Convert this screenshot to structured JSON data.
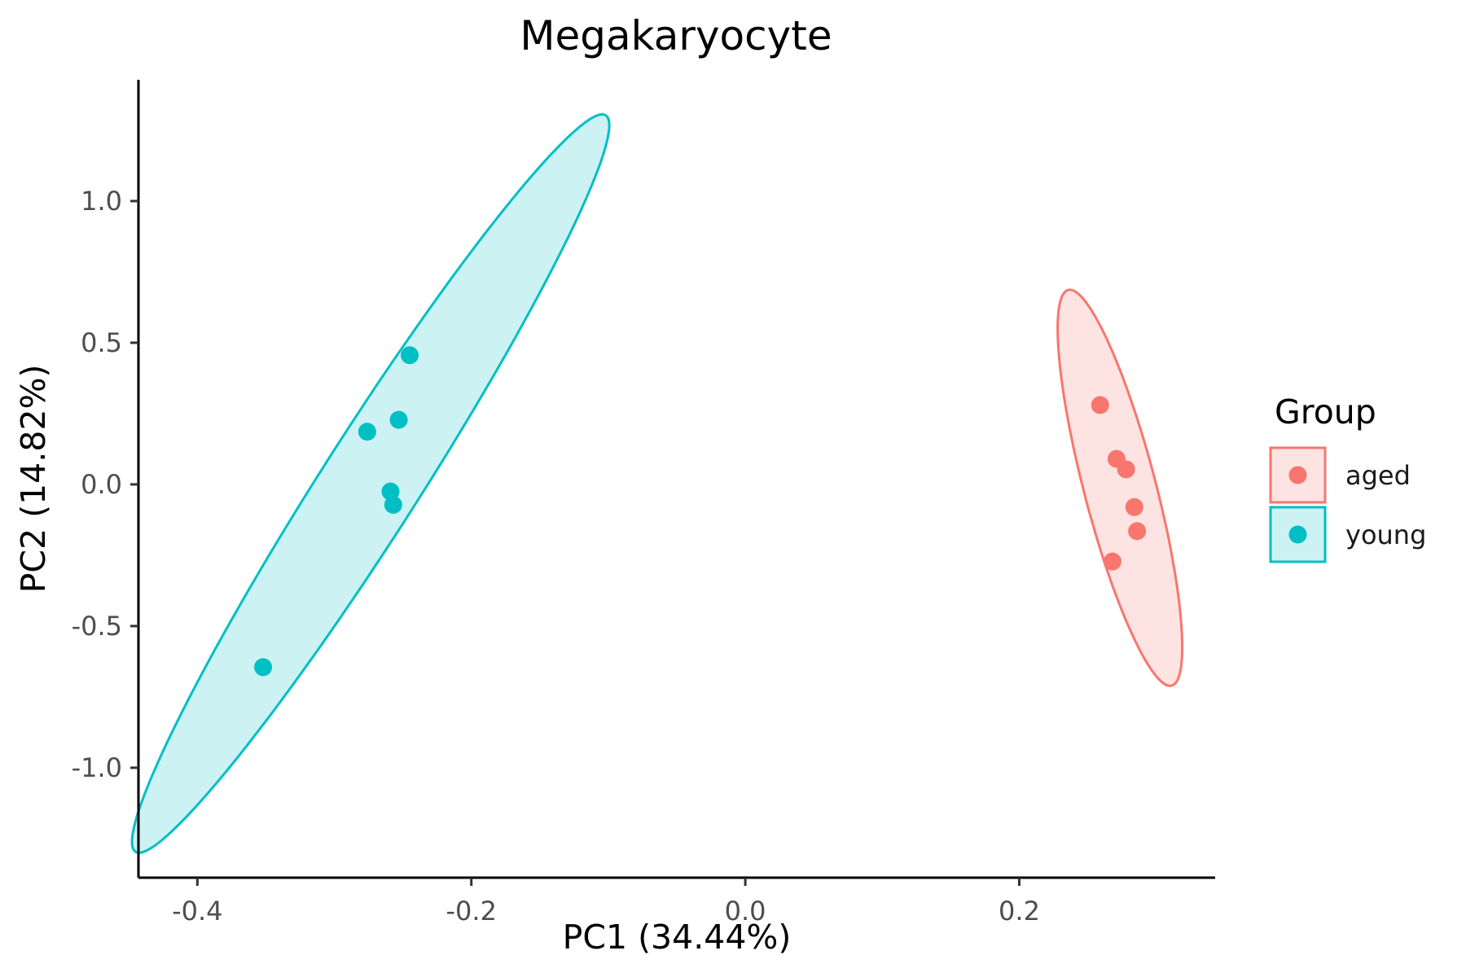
{
  "chart_data": {
    "type": "scatter",
    "title": "Megakaryocyte",
    "xlabel": "PC1 (34.44%)",
    "ylabel": "PC2 (14.82%)",
    "xlim": [
      -0.443,
      0.343
    ],
    "ylim": [
      -1.388,
      1.428
    ],
    "x_ticks": [
      -0.4,
      -0.2,
      0.0,
      0.2
    ],
    "x_tick_labels": [
      "-0.4",
      "-0.2",
      "0.0",
      "0.2"
    ],
    "y_ticks": [
      -1.0,
      -0.5,
      0.0,
      0.5,
      1.0
    ],
    "y_tick_labels": [
      "-1.0",
      "-0.5",
      "0.0",
      "0.5",
      "1.0"
    ],
    "grid": false,
    "legend": {
      "title": "Group",
      "position": "right"
    },
    "series": [
      {
        "name": "aged",
        "color": "#f8766d",
        "fill": "#fde4e2",
        "points": [
          {
            "x": 0.259,
            "y": 0.28
          },
          {
            "x": 0.271,
            "y": 0.09
          },
          {
            "x": 0.278,
            "y": 0.053
          },
          {
            "x": 0.284,
            "y": -0.08
          },
          {
            "x": 0.286,
            "y": -0.165
          },
          {
            "x": 0.268,
            "y": -0.272
          }
        ],
        "ellipse": {
          "cx": 0.2735,
          "cy": -0.012,
          "a": 0.7,
          "b": 0.027,
          "angle_deg": 93
        }
      },
      {
        "name": "young",
        "color": "#00bfc4",
        "fill": "#ccf2f3",
        "points": [
          {
            "x": -0.245,
            "y": 0.456
          },
          {
            "x": -0.253,
            "y": 0.228
          },
          {
            "x": -0.276,
            "y": 0.186
          },
          {
            "x": -0.259,
            "y": -0.025
          },
          {
            "x": -0.257,
            "y": -0.072
          },
          {
            "x": -0.352,
            "y": -0.645
          }
        ],
        "ellipse": {
          "cx": -0.2735,
          "cy": 0.003,
          "a": 1.314,
          "b": 0.0418,
          "angle_deg": 82.6
        }
      }
    ]
  }
}
